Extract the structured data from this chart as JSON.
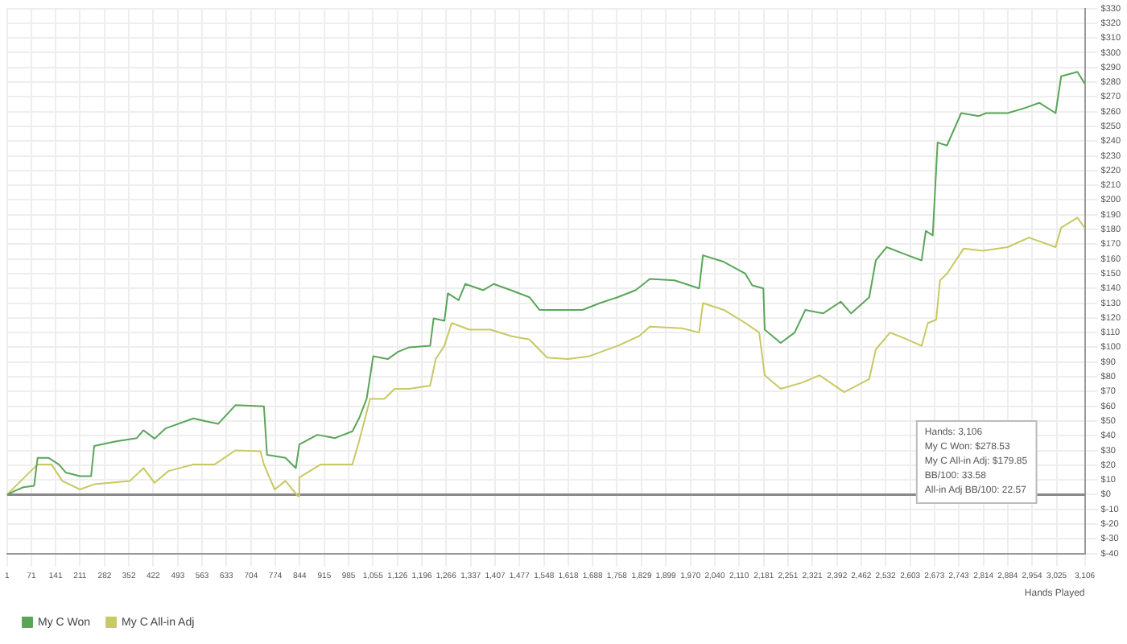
{
  "chart_data": {
    "type": "line",
    "xlabel": "Hands Played",
    "x": [
      1,
      28,
      48,
      79,
      89,
      120,
      150,
      170,
      211,
      243,
      252,
      312,
      375,
      394,
      426,
      458,
      538,
      579,
      609,
      659,
      741,
      750,
      803,
      833,
      843,
      895,
      946,
      996,
      1015,
      1037,
      1056,
      1098,
      1128,
      1160,
      1220,
      1230,
      1261,
      1271,
      1302,
      1321,
      1373,
      1403,
      1453,
      1506,
      1535,
      1598,
      1659,
      1709,
      1760,
      1812,
      1853,
      1924,
      1995,
      2006,
      2066,
      2128,
      2148,
      2180,
      2184,
      2230,
      2270,
      2301,
      2352,
      2403,
      2433,
      2485,
      2504,
      2535,
      2596,
      2636,
      2648,
      2668,
      2682,
      2709,
      2750,
      2801,
      2822,
      2884,
      2934,
      2975,
      3022,
      3038,
      3085,
      3106
    ],
    "series": [
      {
        "name": "My C Won",
        "color": "#5aa55a",
        "values": [
          0,
          3,
          5,
          6,
          25,
          25,
          20.5,
          15,
          12.5,
          12.5,
          33,
          36,
          38.4,
          43.7,
          38,
          45,
          51.7,
          49.5,
          48,
          60.7,
          60,
          27,
          25,
          18,
          34,
          40.6,
          38.4,
          43,
          51.7,
          65,
          94,
          92,
          97,
          100,
          101,
          119.6,
          118,
          136.6,
          132,
          143,
          138.8,
          143,
          138.8,
          134,
          125.4,
          125.4,
          125.4,
          130,
          134,
          138.8,
          146.4,
          145.5,
          140,
          162.5,
          158,
          150,
          142,
          140,
          112,
          103,
          110,
          125.4,
          123,
          131,
          123,
          134,
          159,
          168,
          162.5,
          159,
          179,
          176,
          239,
          237,
          259,
          257,
          259,
          259,
          262.5,
          266,
          259,
          284,
          287,
          279
        ]
      },
      {
        "name": "My C All-in Adj",
        "color": "#c8c864",
        "x": [
          1,
          89,
          129,
          160,
          211,
          252,
          355,
          394,
          426,
          466,
          538,
          599,
          659,
          731,
          741,
          772,
          803,
          839,
          843,
          905,
          996,
          1015,
          1047,
          1088,
          1118,
          1160,
          1220,
          1236,
          1261,
          1282,
          1333,
          1394,
          1453,
          1506,
          1557,
          1618,
          1679,
          1760,
          1822,
          1853,
          1944,
          1995,
          2006,
          2066,
          2128,
          2168,
          2184,
          2230,
          2291,
          2342,
          2413,
          2485,
          2504,
          2545,
          2586,
          2636,
          2654,
          2678,
          2689,
          2709,
          2757,
          2812,
          2884,
          2945,
          3022,
          3038,
          3085,
          3106
        ],
        "values": [
          0,
          20.5,
          20.5,
          9.3,
          3.5,
          7,
          9.3,
          18,
          8,
          16,
          20.5,
          20.5,
          30,
          29.4,
          20.5,
          3.5,
          9.3,
          -1,
          11.6,
          20.5,
          20.5,
          36,
          65,
          65,
          71.8,
          71.8,
          74,
          92,
          101,
          116.5,
          112,
          112,
          107.6,
          105.3,
          93,
          92,
          94,
          101,
          107.6,
          114,
          113,
          110,
          130,
          125.4,
          116.5,
          110,
          81,
          71.8,
          76,
          81,
          69.6,
          78.5,
          98.6,
          110,
          106.2,
          101,
          116.5,
          118.7,
          145.5,
          150,
          167,
          165.6,
          168,
          174.5,
          168,
          181.2,
          188,
          181
        ]
      }
    ],
    "xlim": [
      1,
      3106
    ],
    "xticks": [
      1,
      71,
      141,
      211,
      282,
      352,
      422,
      493,
      563,
      633,
      704,
      774,
      844,
      915,
      985,
      {
        "value": 1055,
        "label": "1,055"
      },
      {
        "value": 1126,
        "label": "1,126"
      },
      {
        "value": 1196,
        "label": "1,196"
      },
      {
        "value": 1266,
        "label": "1,266"
      },
      {
        "value": 1337,
        "label": "1,337"
      },
      {
        "value": 1407,
        "label": "1,407"
      },
      {
        "value": 1477,
        "label": "1,477"
      },
      {
        "value": 1548,
        "label": "1,548"
      },
      {
        "value": 1618,
        "label": "1,618"
      },
      {
        "value": 1688,
        "label": "1,688"
      },
      {
        "value": 1758,
        "label": "1,758"
      },
      {
        "value": 1829,
        "label": "1,829"
      },
      {
        "value": 1899,
        "label": "1,899"
      },
      {
        "value": 1970,
        "label": "1,970"
      },
      {
        "value": 2040,
        "label": "2,040"
      },
      {
        "value": 2110,
        "label": "2,110"
      },
      {
        "value": 2181,
        "label": "2,181"
      },
      {
        "value": 2251,
        "label": "2,251"
      },
      {
        "value": 2321,
        "label": "2,321"
      },
      {
        "value": 2392,
        "label": "2,392"
      },
      {
        "value": 2462,
        "label": "2,462"
      },
      {
        "value": 2532,
        "label": "2,532"
      },
      {
        "value": 2603,
        "label": "2,603"
      },
      {
        "value": 2673,
        "label": "2,673"
      },
      {
        "value": 2743,
        "label": "2,743"
      },
      {
        "value": 2814,
        "label": "2,814"
      },
      {
        "value": 2884,
        "label": "2,884"
      },
      {
        "value": 2954,
        "label": "2,954"
      },
      {
        "value": 3025,
        "label": "3,025"
      },
      {
        "value": 3106,
        "label": "3,106"
      }
    ],
    "ylim": [
      -40,
      330
    ],
    "yticks": [
      {
        "value": -40,
        "label": "$-40"
      },
      {
        "value": -30,
        "label": "$-30"
      },
      {
        "value": -20,
        "label": "$-20"
      },
      {
        "value": -10,
        "label": "$-10"
      },
      {
        "value": 0,
        "label": "$0"
      },
      {
        "value": 10,
        "label": "$10"
      },
      {
        "value": 20,
        "label": "$20"
      },
      {
        "value": 30,
        "label": "$30"
      },
      {
        "value": 40,
        "label": "$40"
      },
      {
        "value": 50,
        "label": "$50"
      },
      {
        "value": 60,
        "label": "$60"
      },
      {
        "value": 70,
        "label": "$70"
      },
      {
        "value": 80,
        "label": "$80"
      },
      {
        "value": 90,
        "label": "$90"
      },
      {
        "value": 100,
        "label": "$100"
      },
      {
        "value": 110,
        "label": "$110"
      },
      {
        "value": 120,
        "label": "$120"
      },
      {
        "value": 130,
        "label": "$130"
      },
      {
        "value": 140,
        "label": "$140"
      },
      {
        "value": 150,
        "label": "$150"
      },
      {
        "value": 160,
        "label": "$160"
      },
      {
        "value": 170,
        "label": "$170"
      },
      {
        "value": 180,
        "label": "$180"
      },
      {
        "value": 190,
        "label": "$190"
      },
      {
        "value": 200,
        "label": "$200"
      },
      {
        "value": 210,
        "label": "$210"
      },
      {
        "value": 220,
        "label": "$220"
      },
      {
        "value": 230,
        "label": "$230"
      },
      {
        "value": 240,
        "label": "$240"
      },
      {
        "value": 250,
        "label": "$250"
      },
      {
        "value": 260,
        "label": "$260"
      },
      {
        "value": 270,
        "label": "$270"
      },
      {
        "value": 280,
        "label": "$280"
      },
      {
        "value": 290,
        "label": "$290"
      },
      {
        "value": 300,
        "label": "$300"
      },
      {
        "value": 310,
        "label": "$310"
      },
      {
        "value": 320,
        "label": "$320"
      },
      {
        "value": 330,
        "label": "$330"
      }
    ],
    "ref_lines": [
      {
        "axis": "y",
        "value": 0,
        "color": "#888888"
      }
    ],
    "annotations": [
      "Hands: 3,106",
      "My C Won: $278.53",
      "My C All-in Adj: $179.85",
      "BB/100: 33.58",
      "All-in Adj BB/100: 22.57"
    ],
    "grid": true,
    "legend": "bottom left",
    "marker": "none",
    "line_style": "solid"
  }
}
